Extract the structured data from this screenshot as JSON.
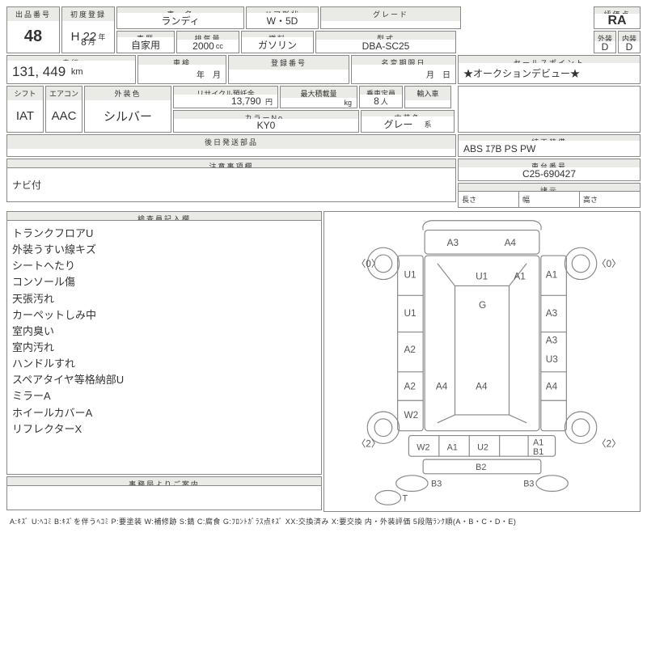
{
  "lot": {
    "hdr": "出品番号",
    "val": "48"
  },
  "reg": {
    "hdr": "初度登録",
    "year": "H 22",
    "year_suffix": "年",
    "month": "8",
    "month_suffix": "月"
  },
  "name": {
    "hdr": "車　名",
    "val": "ランディ"
  },
  "hist": {
    "hdr": "車歴",
    "val": "自家用"
  },
  "disp": {
    "hdr": "排気量",
    "val": "2000",
    "unit": "cc"
  },
  "door": {
    "hdr": "ドア形状",
    "val": "W・5D"
  },
  "fuel": {
    "hdr": "燃料",
    "val": "ガソリン"
  },
  "grade": {
    "hdr": "グレード",
    "val": ""
  },
  "model": {
    "hdr": "型式",
    "val": "DBA-SC25"
  },
  "score": {
    "hdr": "評価点",
    "val": "RA"
  },
  "ext": {
    "hdr": "外装",
    "val": "D"
  },
  "int": {
    "hdr": "内装",
    "val": "D"
  },
  "odo": {
    "hdr": "走行",
    "val": "131, 449",
    "unit": "km"
  },
  "shaken": {
    "hdr": "車検",
    "y": "年",
    "m": "月"
  },
  "regno": {
    "hdr": "登録番号",
    "val": ""
  },
  "expire": {
    "hdr": "名変期限日",
    "m": "月",
    "d": "日"
  },
  "sales": {
    "hdr": "セールスポイント",
    "val": "★オークションデビュー★"
  },
  "shift": {
    "hdr": "シフト",
    "val": "IAT"
  },
  "ac": {
    "hdr": "エアコン",
    "val": "AAC"
  },
  "extcol": {
    "hdr": "外装色",
    "val": "シルバー"
  },
  "recycle": {
    "hdr": "リサイクル預託金",
    "val": "13,790",
    "unit": "円"
  },
  "load": {
    "hdr": "最大積載量",
    "unit": "kg"
  },
  "cap": {
    "hdr": "乗車定員",
    "val": "8",
    "unit": "人"
  },
  "import": {
    "hdr": "輸入車"
  },
  "colno": {
    "hdr": "カラーNo.",
    "val": "KY0"
  },
  "intcol": {
    "hdr": "内装色",
    "val": "グレー",
    "unit": "系"
  },
  "parts": {
    "hdr": "後日発送部品"
  },
  "equip": {
    "hdr": "純正装備",
    "val": "ABS ｴｱB PS PW"
  },
  "notes_hdr": "注意事項欄",
  "notes_val": "ナビ付",
  "vin": {
    "hdr": "車台番号",
    "val": "C25-690427"
  },
  "dims": {
    "hdr": "諸元",
    "l": "長さ",
    "w": "幅",
    "h": "高さ"
  },
  "insp_hdr": "検査員記入欄",
  "insp_lines": [
    "トランクフロアU",
    "外装うすい線キズ",
    "シートへたり",
    "コンソール傷",
    "天張汚れ",
    "カーペットしみ中",
    "室内臭い",
    "室内汚れ",
    "ハンドルすれ",
    "スペアタイヤ等格納部U",
    "ミラーA",
    "ホイールカバーA",
    "リフレクターX"
  ],
  "office_hdr": "事務局よりご案内",
  "legend": "A:ｷｽﾞ U:ﾍｺﾐ B:ｷｽﾞを伴うﾍｺﾐ P:要塗装 W:補修跡 S:錆 C:腐食 G:ﾌﾛﾝﾄｶﾞﾗｽ点ｷｽﾞ XX:交換済み X:要交換 内・外装評価 5段階ﾗﾝｸ順(A・B・C・D・E)",
  "diagram": {
    "marks": {
      "hood_l": "A3",
      "hood_r": "A4",
      "fl_fender": "U1",
      "fl_door": "U1",
      "rl_door": "A2",
      "rl_fender2": "A2",
      "rl_rocker": "W2",
      "fr_fender": "A1",
      "fr_door": "A3",
      "rr_door": "A3",
      "rr_door2": "U3",
      "rr_fender": "A4",
      "roof_f": "U1",
      "roof": "G",
      "roof_m": "A1",
      "rear_l": "A4",
      "rear": "A4",
      "trunk_l": "W2",
      "trunk_m1": "A1",
      "trunk_m2": "U2",
      "trunk_r1": "A1",
      "trunk_r2": "B1",
      "bumper_l": "B3",
      "bumper_m": "B2",
      "bumper_r": "B3",
      "mirror": "T"
    },
    "wheels": {
      "fl": "0",
      "fr": "0",
      "rl": "2",
      "rr": "2"
    }
  },
  "colors": {
    "border": "#888",
    "hdr_bg": "#eaeae6",
    "text": "#333",
    "diagram": "#888"
  }
}
